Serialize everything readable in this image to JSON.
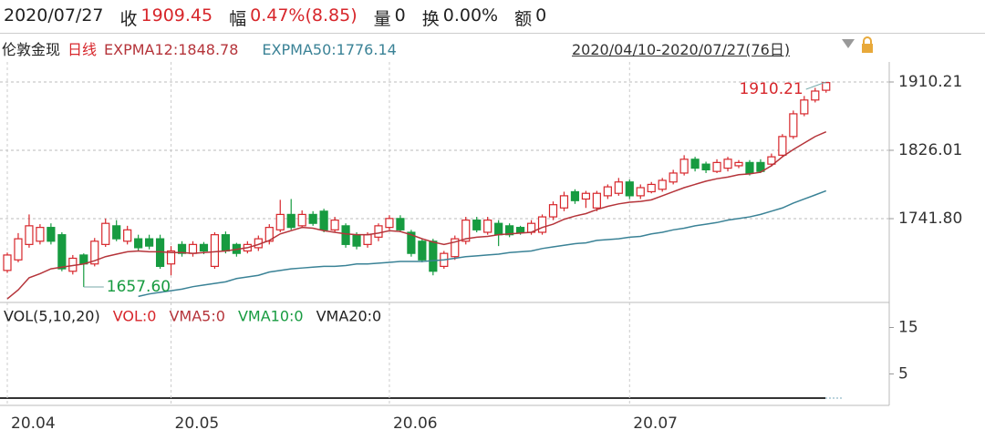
{
  "header": {
    "date": "2020/07/27",
    "fields": [
      {
        "label": "收",
        "value": "1909.45",
        "color": "#d7262b"
      },
      {
        "label": "幅",
        "value": "0.47%(8.85)",
        "color": "#d7262b"
      },
      {
        "label": "量",
        "value": "0"
      },
      {
        "label": "换",
        "value": "0.00%"
      },
      {
        "label": "额",
        "value": "0"
      }
    ]
  },
  "chart_data": {
    "type": "candlestick",
    "title": "伦敦金现",
    "period": "日线",
    "range": "2020/04/10-2020/07/27(76日)",
    "up_color": "#d7262b",
    "down_color": "#179b40",
    "open": [
      1678,
      1691,
      1710,
      1714,
      1731,
      1722,
      1677,
      1697,
      1686,
      1710,
      1733,
      1714,
      1717,
      1717,
      1717,
      1686,
      1710,
      1699,
      1710,
      1683,
      1722,
      1710,
      1702,
      1706,
      1714,
      1728,
      1747,
      1733,
      1747,
      1751,
      1728,
      1733,
      1722,
      1710,
      1719,
      1731,
      1742,
      1725,
      1714,
      1714,
      1683,
      1695,
      1714,
      1740,
      1725,
      1736,
      1733,
      1731,
      1725,
      1725,
      1744,
      1755,
      1775,
      1766,
      1755,
      1770,
      1773,
      1787,
      1770,
      1775,
      1778,
      1787,
      1798,
      1815,
      1809,
      1800,
      1804,
      1807,
      1811,
      1811,
      1809,
      1820,
      1843,
      1871,
      1888,
      1900
    ],
    "high": [
      1700,
      1724,
      1747,
      1735,
      1736,
      1725,
      1697,
      1699,
      1718,
      1742,
      1740,
      1733,
      1722,
      1722,
      1722,
      1708,
      1714,
      1714,
      1713,
      1725,
      1726,
      1712,
      1714,
      1721,
      1735,
      1765,
      1766,
      1752,
      1751,
      1754,
      1744,
      1736,
      1725,
      1725,
      1736,
      1746,
      1746,
      1728,
      1717,
      1717,
      1702,
      1721,
      1744,
      1744,
      1744,
      1740,
      1736,
      1733,
      1740,
      1747,
      1763,
      1775,
      1778,
      1776,
      1776,
      1784,
      1792,
      1790,
      1784,
      1787,
      1792,
      1802,
      1820,
      1818,
      1812,
      1815,
      1818,
      1814,
      1814,
      1815,
      1822,
      1846,
      1875,
      1893,
      1903,
      1910.21
    ],
    "low": [
      1675,
      1688,
      1706,
      1710,
      1710,
      1677,
      1673,
      1657.6,
      1683,
      1707,
      1714,
      1710,
      1702,
      1704,
      1680,
      1672,
      1695,
      1695,
      1698,
      1680,
      1699,
      1695,
      1699,
      1702,
      1710,
      1725,
      1728,
      1730,
      1733,
      1725,
      1725,
      1706,
      1704,
      1706,
      1714,
      1728,
      1725,
      1695,
      1688,
      1672,
      1680,
      1691,
      1710,
      1725,
      1722,
      1708,
      1719,
      1722,
      1722,
      1722,
      1740,
      1751,
      1760,
      1755,
      1751,
      1766,
      1770,
      1766,
      1766,
      1773,
      1775,
      1784,
      1795,
      1800,
      1798,
      1798,
      1800,
      1804,
      1795,
      1798,
      1806,
      1818,
      1840,
      1868,
      1885,
      1897
    ],
    "close": [
      1697,
      1717,
      1733,
      1731,
      1714,
      1680,
      1693,
      1686,
      1714,
      1736,
      1717,
      1728,
      1706,
      1708,
      1683,
      1702,
      1699,
      1710,
      1702,
      1722,
      1702,
      1699,
      1710,
      1717,
      1731,
      1747,
      1731,
      1747,
      1736,
      1728,
      1740,
      1710,
      1708,
      1722,
      1733,
      1742,
      1728,
      1699,
      1691,
      1677,
      1699,
      1717,
      1740,
      1728,
      1740,
      1722,
      1722,
      1725,
      1736,
      1744,
      1759,
      1770,
      1764,
      1773,
      1773,
      1781,
      1787,
      1770,
      1780,
      1784,
      1789,
      1798,
      1815,
      1804,
      1802,
      1811,
      1815,
      1811,
      1798,
      1800,
      1818,
      1843,
      1871,
      1888,
      1899,
      1909.45
    ],
    "series": [
      {
        "name": "EXPMA12:1848.78",
        "color": "#b5343a",
        "values": [
          1643,
          1654,
          1669,
          1674,
          1680,
          1682,
          1684,
          1686,
          1690,
          1695,
          1698,
          1701,
          1702,
          1701,
          1701,
          1700,
          1700,
          1699,
          1700,
          1701,
          1702,
          1704,
          1706,
          1710,
          1715,
          1723,
          1727,
          1731,
          1730,
          1727,
          1725,
          1723,
          1722,
          1722,
          1724,
          1727,
          1726,
          1722,
          1717,
          1713,
          1710,
          1713,
          1717,
          1719,
          1720,
          1722,
          1723,
          1724,
          1725,
          1731,
          1735,
          1741,
          1745,
          1748,
          1753,
          1757,
          1760,
          1762,
          1763,
          1765,
          1770,
          1775,
          1780,
          1784,
          1788,
          1791,
          1793,
          1796,
          1797,
          1799,
          1807,
          1818,
          1827,
          1835,
          1843,
          1848.78
        ]
      },
      {
        "name": "EXPMA50:1776.14",
        "color": "#3a8296",
        "values": [
          null,
          null,
          null,
          null,
          null,
          null,
          null,
          null,
          null,
          null,
          null,
          null,
          1646,
          1649,
          1651,
          1653,
          1655,
          1658,
          1660,
          1662,
          1664,
          1668,
          1670,
          1672,
          1676,
          1678,
          1680,
          1681,
          1682,
          1683,
          1683,
          1684,
          1686,
          1686,
          1687,
          1688,
          1689,
          1689,
          1689,
          1690,
          1691,
          1693,
          1695,
          1696,
          1697,
          1698,
          1700,
          1701,
          1702,
          1705,
          1707,
          1709,
          1711,
          1712,
          1715,
          1716,
          1717,
          1719,
          1720,
          1723,
          1725,
          1728,
          1730,
          1733,
          1735,
          1737,
          1740,
          1742,
          1744,
          1747,
          1751,
          1755,
          1761,
          1766,
          1771,
          1776.14
        ]
      }
    ],
    "ylim": [
      1640.8,
      1934.9
    ],
    "yticks": [
      1910.21,
      1826.01,
      {
        "value": 1741.8,
        "label": "1741.80"
      }
    ],
    "grid": true,
    "annotations": [
      {
        "value": 1910.21,
        "label": "1910.21"
      },
      {
        "value": 1657.6,
        "label": "1657.60"
      }
    ],
    "x_labels": [
      {
        "value": 0,
        "label": "20.04"
      },
      {
        "value": 15,
        "label": "20.05"
      },
      {
        "value": 35,
        "label": "20.06"
      },
      {
        "value": 57,
        "label": "20.07"
      }
    ],
    "volume": {
      "legend": [
        {
          "text": "VOL(5,10,20)",
          "color": "#222222"
        },
        {
          "text": "VOL:0",
          "color": "#d7262b"
        },
        {
          "text": "VMA5:0",
          "color": "#b5343a"
        },
        {
          "text": "VMA10:0",
          "color": "#179b40"
        },
        {
          "text": "VMA20:0",
          "color": "#222222"
        }
      ],
      "ylim": [
        0,
        20
      ],
      "yticks": [
        15,
        5
      ]
    }
  }
}
